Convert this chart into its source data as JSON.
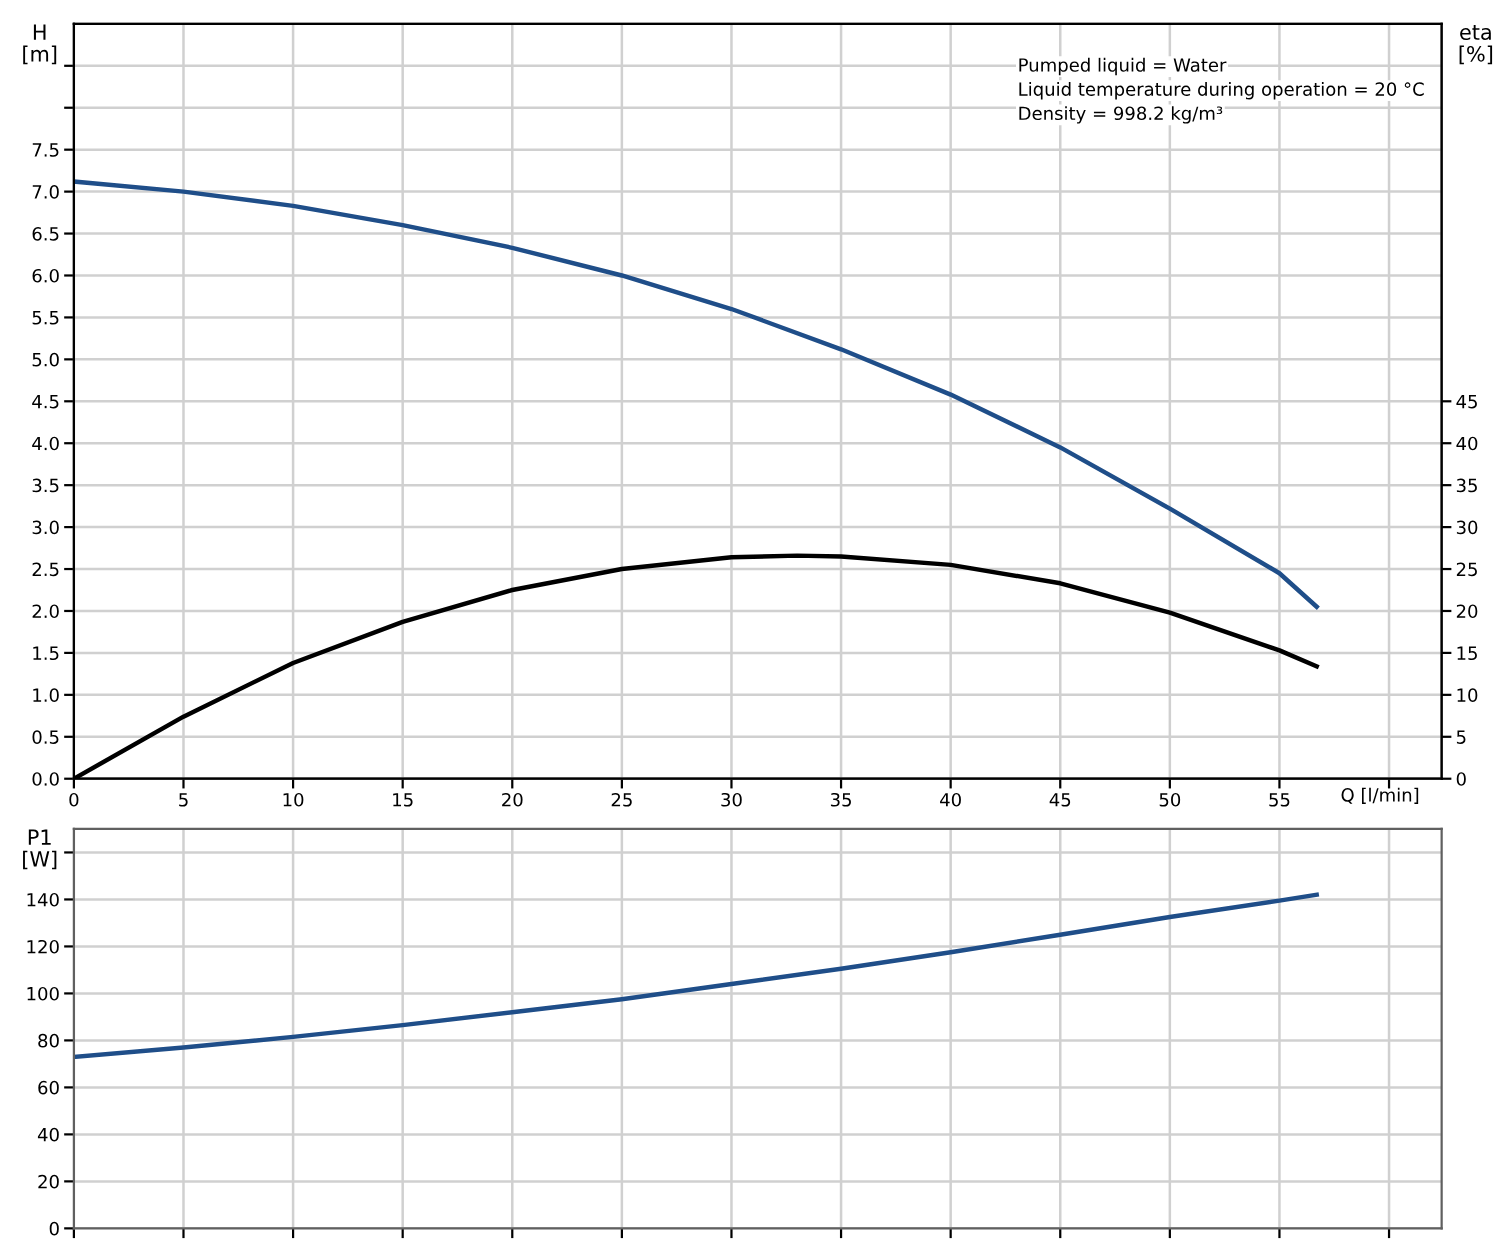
{
  "chart_data": [
    {
      "type": "line",
      "xlabel": "Q [l/min]",
      "ylabel": "H\n[m]",
      "y2label": "eta\n[%]",
      "annotations": [
        "Pumped liquid = Water",
        "Liquid temperature during operation = 20 °C",
        "Density = 998.2 kg/m³"
      ],
      "xlim": [
        0,
        62.4
      ],
      "xticks": [
        0,
        5,
        10,
        15,
        20,
        25,
        30,
        35,
        40,
        45,
        50,
        55,
        {
          "value": 60,
          "label": null
        }
      ],
      "ylim": [
        0,
        9
      ],
      "yticks": [
        {
          "value": 0,
          "label": "0.0"
        },
        0.5,
        {
          "value": 1,
          "label": "1.0"
        },
        1.5,
        {
          "value": 2,
          "label": "2.0"
        },
        2.5,
        {
          "value": 3,
          "label": "3.0"
        },
        3.5,
        {
          "value": 4,
          "label": "4.0"
        },
        4.5,
        {
          "value": 5,
          "label": "5.0"
        },
        5.5,
        {
          "value": 6,
          "label": "6.0"
        },
        6.5,
        {
          "value": 7,
          "label": "7.0"
        },
        7.5,
        {
          "value": 8,
          "label": null
        },
        {
          "value": 8.5,
          "label": null
        }
      ],
      "y2lim": [
        0,
        90
      ],
      "y2ticks": [
        0,
        5,
        10,
        15,
        20,
        25,
        30,
        35,
        40,
        45
      ],
      "grid": true,
      "line_style": "solid",
      "series": [
        {
          "color": "#1f4e89",
          "x": [
            0,
            5,
            10,
            15,
            20,
            25,
            30,
            35,
            40,
            45,
            50,
            55,
            56.7
          ],
          "values": [
            7.12,
            7.0,
            6.83,
            6.6,
            6.33,
            6.0,
            5.6,
            5.12,
            4.58,
            3.95,
            3.22,
            2.45,
            2.05
          ]
        },
        {
          "color": "#000000",
          "axis": "y2",
          "x": [
            0,
            5,
            10,
            15,
            20,
            25,
            30,
            33,
            35,
            40,
            45,
            50,
            55,
            56.7
          ],
          "values": [
            0,
            7.4,
            13.8,
            18.7,
            22.5,
            25,
            26.4,
            26.6,
            26.5,
            25.5,
            23.3,
            19.8,
            15.3,
            13.4
          ]
        }
      ]
    },
    {
      "type": "line",
      "ylabel": "P1\n[W]",
      "tick_labels": "y",
      "xlim": [
        0,
        62.4
      ],
      "xticks": [
        0,
        5,
        10,
        15,
        20,
        25,
        30,
        35,
        40,
        45,
        50,
        55,
        60
      ],
      "ylim": [
        0,
        170
      ],
      "yticks": [
        0,
        20,
        40,
        60,
        80,
        100,
        120,
        140,
        {
          "value": 160,
          "label": null
        }
      ],
      "grid": true,
      "line_style": "solid",
      "series": [
        {
          "color": "#1f4e89",
          "x": [
            0,
            5,
            10,
            15,
            20,
            25,
            30,
            35,
            40,
            45,
            50,
            55,
            56.7
          ],
          "values": [
            73,
            77,
            81.5,
            86.5,
            92,
            97.5,
            104,
            110.5,
            117.5,
            125,
            132.5,
            139.5,
            142
          ]
        }
      ]
    }
  ]
}
